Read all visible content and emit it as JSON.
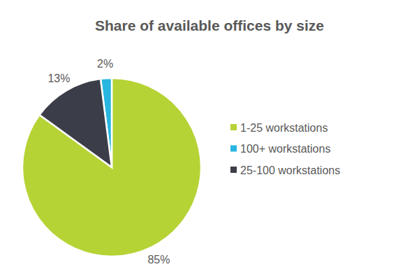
{
  "chart_data": {
    "type": "pie",
    "title": "Share of available offices by size",
    "categories": [
      "1-25 workstations",
      "100+ workstations",
      "25-100 workstations"
    ],
    "values": [
      85,
      2,
      13
    ],
    "value_labels": [
      "85%",
      "2%",
      "13%"
    ],
    "colors": [
      "#b5d334",
      "#29b6e0",
      "#3b3e48"
    ],
    "data_labels": true
  }
}
